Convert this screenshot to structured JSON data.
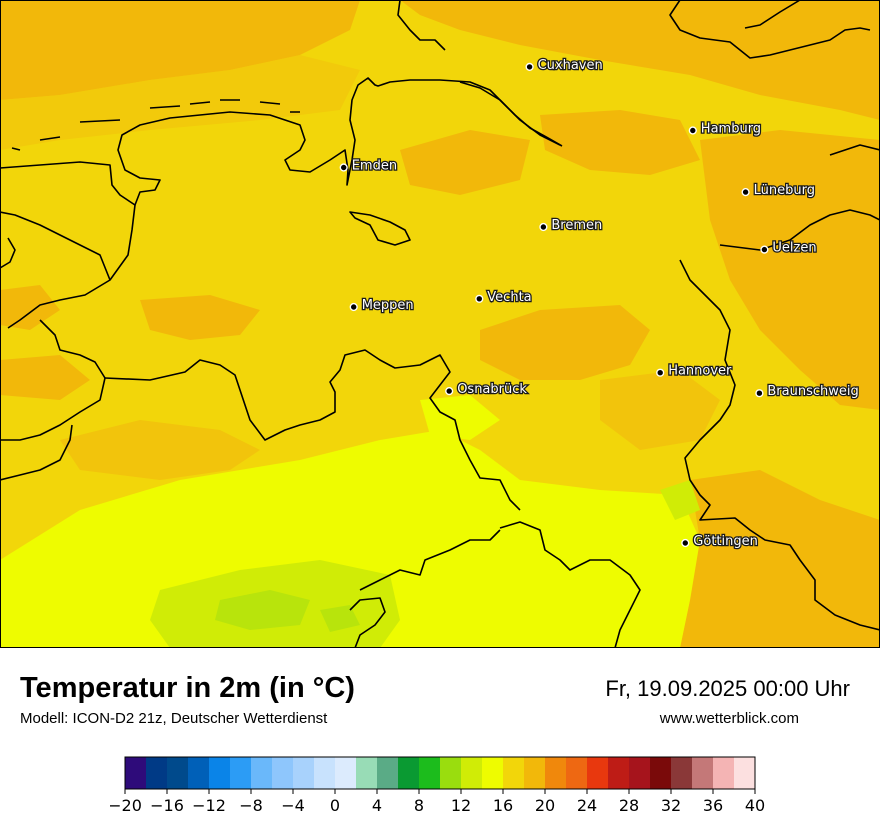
{
  "title": "Temperatur in 2m (in °C)",
  "subtitle": "Modell: ICON-D2 21z, Deutscher Wetterdienst",
  "datetime": "Fr, 19.09.2025 00:00 Uhr",
  "website": "www.wetterblick.com",
  "cities": [
    {
      "name": "Cuxhaven",
      "lon": 8.69,
      "lat": 53.86
    },
    {
      "name": "Hamburg",
      "lon": 9.99,
      "lat": 53.55
    },
    {
      "name": "Emden",
      "lon": 7.21,
      "lat": 53.37
    },
    {
      "name": "Lüneburg",
      "lon": 10.41,
      "lat": 53.25
    },
    {
      "name": "Bremen",
      "lon": 8.8,
      "lat": 53.08
    },
    {
      "name": "Uelzen",
      "lon": 10.56,
      "lat": 52.97
    },
    {
      "name": "Vechta",
      "lon": 8.29,
      "lat": 52.73
    },
    {
      "name": "Meppen",
      "lon": 7.29,
      "lat": 52.69
    },
    {
      "name": "Hannover",
      "lon": 9.73,
      "lat": 52.37
    },
    {
      "name": "Osnabrück",
      "lon": 8.05,
      "lat": 52.28
    },
    {
      "name": "Braunschweig",
      "lon": 10.52,
      "lat": 52.27
    },
    {
      "name": "Göttingen",
      "lon": 9.93,
      "lat": 51.54
    }
  ],
  "legend": {
    "colors": [
      "#2e0b7a",
      "#003a86",
      "#004a8c",
      "#0060b8",
      "#0a84e8",
      "#2c9cf5",
      "#6ab8fa",
      "#8ec6fc",
      "#a8d2fc",
      "#c8e2fd",
      "#dcebfd",
      "#98dcb6",
      "#5aab86",
      "#0a9a32",
      "#1cbc1c",
      "#9add0e",
      "#d0ec06",
      "#eefc00",
      "#f2d60a",
      "#f2b80a",
      "#f0880c",
      "#ee6812",
      "#e8380e",
      "#be1c16",
      "#a6141c",
      "#7a0a0a",
      "#8a3838",
      "#c47878",
      "#f4b4b4",
      "#fce0e0"
    ],
    "ticks": [
      "−20",
      "−16",
      "−12",
      "−8",
      "−4",
      "0",
      "4",
      "8",
      "12",
      "16",
      "20",
      "24",
      "28",
      "32",
      "36",
      "40"
    ]
  },
  "colors": {
    "orange_dark": "#f2b80a",
    "orange_mid": "#f2c40c",
    "yellow_base": "#f2d60a",
    "yellow_bright": "#eefc00",
    "green_yellow": "#d0ec06",
    "green_light": "#b8e40c"
  }
}
